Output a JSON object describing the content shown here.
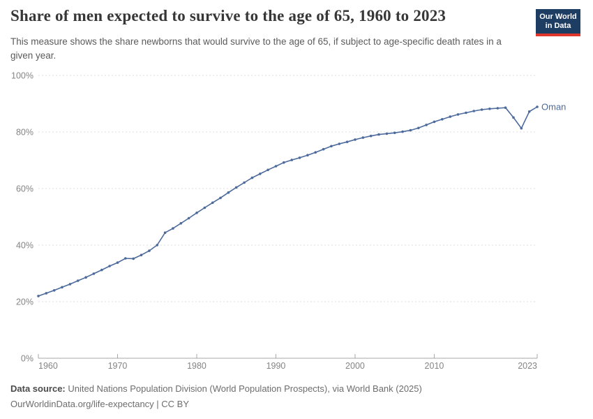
{
  "header": {
    "title": "Share of men expected to survive to the age of 65, 1960 to 2023",
    "subtitle": "This measure shows the share newborns that would survive to the age of 65, if subject to age-specific death rates in a given year.",
    "logo": {
      "line1": "Our World",
      "line2": "in Data",
      "bg_color": "#1d3d63",
      "accent_color": "#e0352b"
    }
  },
  "chart_data": {
    "type": "line",
    "title": "Share of men expected to survive to the age of 65, 1960 to 2023",
    "xlabel": "",
    "ylabel": "",
    "xlim": [
      1960,
      2023
    ],
    "ylim": [
      0,
      100
    ],
    "grid": "horizontal-dashed",
    "legend_position": "end-of-line-label",
    "x_ticks": [
      {
        "value": 1960,
        "label": "1960"
      },
      {
        "value": 1970,
        "label": "1970"
      },
      {
        "value": 1980,
        "label": "1980"
      },
      {
        "value": 1990,
        "label": "1990"
      },
      {
        "value": 2000,
        "label": "2000"
      },
      {
        "value": 2010,
        "label": "2010"
      },
      {
        "value": 2023,
        "label": "2023"
      }
    ],
    "y_ticks": [
      {
        "value": 0,
        "label": "0%"
      },
      {
        "value": 20,
        "label": "20%"
      },
      {
        "value": 40,
        "label": "40%"
      },
      {
        "value": 60,
        "label": "60%"
      },
      {
        "value": 80,
        "label": "80%"
      },
      {
        "value": 100,
        "label": "100%"
      }
    ],
    "series": [
      {
        "name": "Oman",
        "color": "#4c6a9c",
        "x": [
          1960,
          1961,
          1962,
          1963,
          1964,
          1965,
          1966,
          1967,
          1968,
          1969,
          1970,
          1971,
          1972,
          1973,
          1974,
          1975,
          1976,
          1977,
          1978,
          1979,
          1980,
          1981,
          1982,
          1983,
          1984,
          1985,
          1986,
          1987,
          1988,
          1989,
          1990,
          1991,
          1992,
          1993,
          1994,
          1995,
          1996,
          1997,
          1998,
          1999,
          2000,
          2001,
          2002,
          2003,
          2004,
          2005,
          2006,
          2007,
          2008,
          2009,
          2010,
          2011,
          2012,
          2013,
          2014,
          2015,
          2016,
          2017,
          2018,
          2019,
          2020,
          2021,
          2022,
          2023
        ],
        "values": [
          22.0,
          23.0,
          24.0,
          25.1,
          26.2,
          27.4,
          28.6,
          29.9,
          31.2,
          32.6,
          33.8,
          35.3,
          35.2,
          36.5,
          38.0,
          40.0,
          44.4,
          45.9,
          47.7,
          49.5,
          51.4,
          53.2,
          55.0,
          56.7,
          58.6,
          60.4,
          62.1,
          63.8,
          65.2,
          66.6,
          67.9,
          69.2,
          70.1,
          70.9,
          71.8,
          72.8,
          73.9,
          75.0,
          75.8,
          76.5,
          77.3,
          78.0,
          78.6,
          79.1,
          79.4,
          79.7,
          80.1,
          80.6,
          81.4,
          82.5,
          83.6,
          84.5,
          85.4,
          86.2,
          86.8,
          87.4,
          87.9,
          88.2,
          88.4,
          88.6,
          85.1,
          81.3,
          87.2,
          88.9
        ]
      }
    ]
  },
  "footer": {
    "source_label": "Data source:",
    "source_text": " United Nations Population Division (World Population Prospects), via World Bank (2025)",
    "note_text": "OurWorldinData.org/life-expectancy | CC BY"
  }
}
